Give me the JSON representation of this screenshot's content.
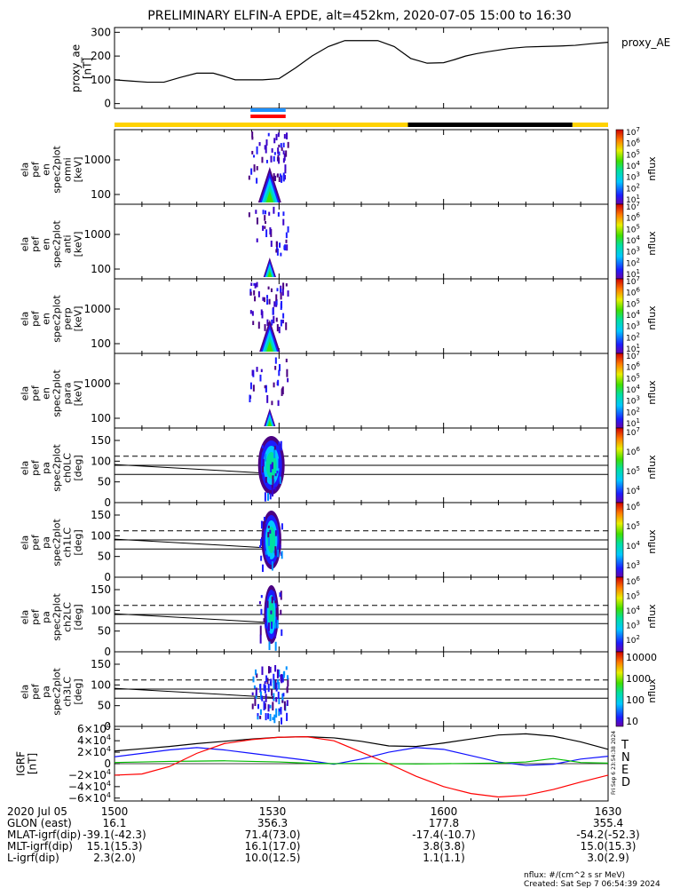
{
  "title": "PRELIMINARY ELFIN-A EPDE, alt=452km, 2020-07-05 15:00 to 16:30",
  "footer": {
    "nflux_units": "nflux: #/(cm^2 s sr MeV)",
    "created": "Created: Sat Sep  7 06:54:39 2024",
    "side_stamp": "Fri Sep  6 23:54:38 2024"
  },
  "axis_table": {
    "date": "2020 Jul 05",
    "x_ticks": [
      "1500",
      "1530",
      "1600",
      "1630"
    ],
    "rows": [
      {
        "label": "GLON (east)",
        "values": [
          "16.1",
          "356.3",
          "177.8",
          "355.4"
        ]
      },
      {
        "label": "MLAT-igrf(dip)",
        "values": [
          "-39.1(-42.3)",
          "71.4(73.0)",
          "-17.4(-10.7)",
          "-54.2(-52.3)"
        ]
      },
      {
        "label": "MLT-igrf(dip)",
        "values": [
          "15.1(15.3)",
          "16.1(17.0)",
          "3.8(3.8)",
          "15.0(15.3)"
        ]
      },
      {
        "label": "L-igrf(dip)",
        "values": [
          "2.3(2.0)",
          "10.0(12.5)",
          "1.1(1.1)",
          "3.0(2.9)"
        ]
      }
    ]
  },
  "chart_data": [
    {
      "type": "line",
      "name": "proxy_ae",
      "legend": "proxy_AE",
      "ylabel": [
        "proxy_ae",
        "[nT]"
      ],
      "ylim": [
        -20,
        320
      ],
      "yticks": [
        "0",
        "100",
        "200",
        "300"
      ],
      "x_range_min": [
        0,
        90
      ],
      "x": [
        0,
        3,
        6,
        9,
        12,
        15,
        18,
        20,
        22,
        24,
        27,
        30,
        33,
        36,
        39,
        42,
        45,
        48,
        51,
        54,
        57,
        60,
        62,
        64,
        66,
        68,
        70,
        72,
        75,
        78,
        81,
        84,
        87,
        90
      ],
      "values": [
        100,
        95,
        90,
        90,
        110,
        128,
        128,
        115,
        100,
        100,
        100,
        105,
        150,
        200,
        240,
        265,
        265,
        265,
        240,
        190,
        170,
        172,
        185,
        200,
        210,
        218,
        225,
        232,
        238,
        240,
        242,
        245,
        252,
        258
      ]
    },
    {
      "type": "bar",
      "name": "status_bars",
      "segments": [
        {
          "color": "#ffd200",
          "from": 0,
          "to": 53.5
        },
        {
          "color": "#000000",
          "from": 53.5,
          "to": 83.5
        },
        {
          "color": "#ffd200",
          "from": 83.5,
          "to": 90
        }
      ],
      "science_zone": {
        "from": 24.8,
        "to": 31.2,
        "colors": [
          "#1e90ff",
          "#ff0000"
        ]
      }
    },
    {
      "type": "heatmap",
      "name": "energy_spectrograms",
      "ylabel_template": [
        "ela",
        "pef",
        "en",
        "spec2plot",
        "{sub}",
        "[keV]"
      ],
      "panels": [
        {
          "sub": "omni",
          "yticks": [
            "1000",
            "100"
          ],
          "colorbar": [
            "10",
            "10",
            "10",
            "10",
            "10",
            "10",
            "10",
            "10"
          ],
          "peak": 1.0
        },
        {
          "sub": "anti",
          "yticks": [
            "1000",
            "100"
          ],
          "colorbar": [
            "10",
            "10",
            "10",
            "10",
            "10",
            "10",
            "10",
            "10"
          ],
          "peak": 0.55
        },
        {
          "sub": "perp",
          "yticks": [
            "1000",
            "100"
          ],
          "colorbar": [
            "10",
            "10",
            "10",
            "10",
            "10",
            "10",
            "10",
            "10"
          ],
          "peak": 0.9
        },
        {
          "sub": "para",
          "yticks": [
            "1000",
            "100"
          ],
          "colorbar": [
            "10",
            "10",
            "10",
            "10",
            "10",
            "10",
            "10",
            "10"
          ],
          "peak": 0.5
        }
      ],
      "cbar_exps": [
        7,
        6,
        5,
        4,
        3,
        2,
        1
      ],
      "zlabel": "nflux"
    },
    {
      "type": "heatmap",
      "name": "pitch_angle_spectrograms",
      "ylabel_template": [
        "ela",
        "pef",
        "pa",
        "spec2plot",
        "{sub}",
        "[deg]"
      ],
      "yticks": [
        "150",
        "100",
        "50",
        "0"
      ],
      "ylim": [
        0,
        180
      ],
      "losscone_dashed": 112,
      "losscone_solid": [
        90,
        68
      ],
      "panels": [
        {
          "sub": "ch0LC",
          "cbar_exps": [
            7,
            6,
            5,
            4
          ],
          "cbar_plain": []
        },
        {
          "sub": "ch1LC",
          "cbar_exps": [
            6,
            5,
            4,
            3
          ],
          "cbar_plain": []
        },
        {
          "sub": "ch2LC",
          "cbar_exps": [
            6,
            5,
            4,
            3,
            2
          ],
          "cbar_plain": []
        },
        {
          "sub": "ch3LC",
          "cbar_exps": [],
          "cbar_plain": [
            "10000",
            "1000",
            "100",
            "10"
          ]
        }
      ],
      "zlabel": "nflux"
    },
    {
      "type": "line",
      "name": "igrf_field",
      "ylabel": [
        "IGRF",
        "[nT]"
      ],
      "ylim": [
        -65000,
        65000
      ],
      "ytick_mantissas": [
        "6",
        "4",
        "2",
        "0",
        "−2",
        "−4",
        "−6"
      ],
      "ytick_values": [
        60000,
        40000,
        20000,
        0,
        -20000,
        -40000,
        -60000
      ],
      "series": [
        {
          "name": "T",
          "color": "#000000",
          "x": [
            0,
            5,
            10,
            15,
            20,
            25,
            30,
            35,
            40,
            45,
            50,
            55,
            60,
            65,
            70,
            75,
            80,
            85,
            90
          ],
          "values": [
            22000,
            26000,
            30000,
            35000,
            39000,
            43000,
            46000,
            47000,
            45000,
            39000,
            31000,
            30000,
            36000,
            43000,
            50000,
            52000,
            48000,
            38000,
            25000
          ]
        },
        {
          "name": "N",
          "color": "#1010ff",
          "x": [
            0,
            5,
            10,
            15,
            20,
            25,
            30,
            35,
            40,
            45,
            50,
            55,
            60,
            65,
            70,
            75,
            80,
            85,
            90
          ],
          "values": [
            12000,
            18000,
            24000,
            28000,
            24000,
            18000,
            12000,
            6000,
            -1000,
            8000,
            20000,
            28000,
            25000,
            14000,
            3000,
            -3000,
            -1000,
            8000,
            13000
          ]
        },
        {
          "name": "E",
          "color": "#00bb00",
          "x": [
            0,
            5,
            10,
            15,
            20,
            25,
            30,
            35,
            40,
            45,
            50,
            55,
            60,
            65,
            70,
            75,
            80,
            85,
            90
          ],
          "values": [
            2000,
            3000,
            4000,
            4500,
            5000,
            4000,
            3000,
            1000,
            0,
            500,
            0,
            -500,
            0,
            500,
            1000,
            3000,
            9000,
            2000,
            1000
          ]
        },
        {
          "name": "D",
          "color": "#ff0000",
          "x": [
            0,
            5,
            10,
            15,
            20,
            25,
            30,
            35,
            40,
            45,
            50,
            55,
            60,
            65,
            70,
            75,
            80,
            85,
            90
          ],
          "values": [
            -20000,
            -18000,
            -5000,
            18000,
            35000,
            42000,
            46000,
            47000,
            40000,
            20000,
            0,
            -22000,
            -40000,
            -52000,
            -58000,
            -55000,
            -45000,
            -32000,
            -20000
          ]
        }
      ]
    }
  ]
}
